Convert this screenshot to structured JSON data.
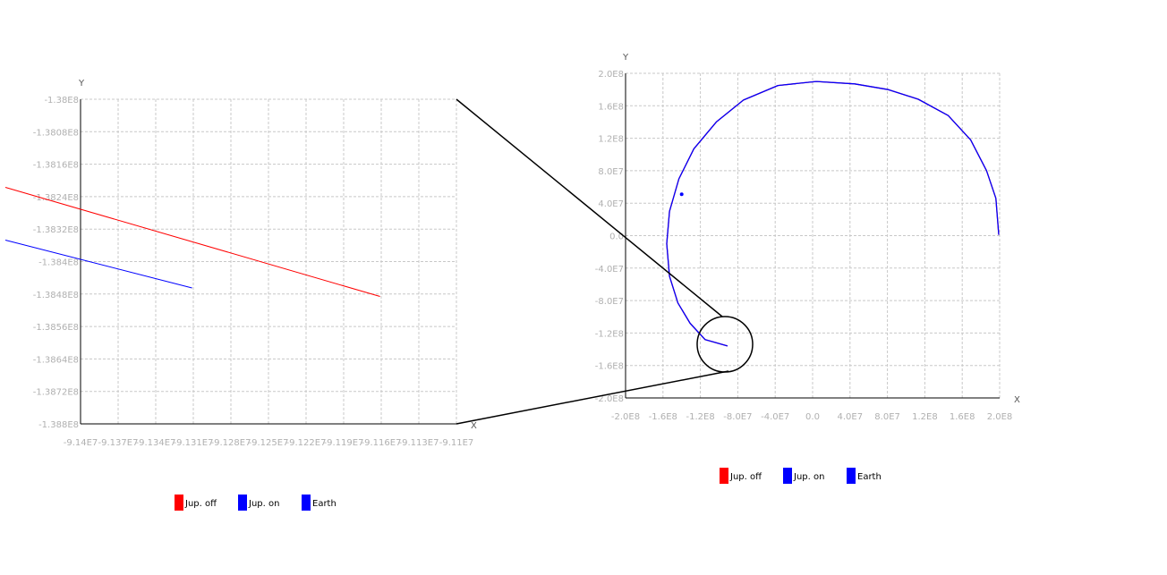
{
  "colors": {
    "jup_off": "#ff0000",
    "jup_on": "#0000ff",
    "earth": "#0000ff",
    "grid": "#c8c8c8",
    "axis": "#000000",
    "tick_text": "#b0b0b0"
  },
  "legend": [
    {
      "label": "Jup. off",
      "color": "#ff0000"
    },
    {
      "label": "Jup. on",
      "color": "#0000ff"
    },
    {
      "label": "Earth",
      "color": "#0000ff"
    }
  ],
  "chart_data": [
    {
      "type": "line",
      "xlabel": "X",
      "ylabel": "Y",
      "xlim": [
        -91400000,
        -91100000
      ],
      "ylim": [
        -138800000,
        -138000000
      ],
      "grid": true,
      "x_ticks": [
        "-9.14E7",
        "-9.137E7",
        "-9.134E7",
        "-9.131E7",
        "-9.128E7",
        "-9.125E7",
        "-9.122E7",
        "-9.119E7",
        "-9.116E7",
        "-9.113E7",
        "-9.11E7"
      ],
      "y_ticks": [
        "-1.38E8",
        "-1.3808E8",
        "-1.3816E8",
        "-1.3824E8",
        "-1.3832E8",
        "-1.384E8",
        "-1.3848E8",
        "-1.3856E8",
        "-1.3864E8",
        "-1.3872E8",
        "-1.388E8"
      ],
      "series": [
        {
          "name": "Jup. off",
          "color": "#ff0000",
          "x": [
            -91460000,
            -91161000
          ],
          "y": [
            -138217000,
            -138486000
          ]
        },
        {
          "name": "Jup. on",
          "color": "#0000ff",
          "x": [
            -91460000,
            -91311000
          ],
          "y": [
            -138347000,
            -138465000
          ]
        }
      ]
    },
    {
      "type": "line",
      "xlabel": "X",
      "ylabel": "Y",
      "xlim": [
        -200000000,
        200000000
      ],
      "ylim": [
        -200000000,
        200000000
      ],
      "grid": true,
      "x_ticks": [
        "-2.0E8",
        "-1.6E8",
        "-1.2E8",
        "-8.0E7",
        "-4.0E7",
        "0.0",
        "4.0E7",
        "8.0E7",
        "1.2E8",
        "1.6E8",
        "2.0E8"
      ],
      "y_ticks": [
        "2.0E8",
        "1.6E8",
        "1.2E8",
        "8.0E7",
        "4.0E7",
        "0.0",
        "-4.0E7",
        "-8.0E7",
        "-1.2E8",
        "-1.6E8",
        "-2.0E8"
      ],
      "series": [
        {
          "name": "Jup. off",
          "color": "#ff0000",
          "x": [
            199000000,
            196000000,
            186000000,
            169000000,
            145000000,
            113000000,
            81000000,
            45000000,
            4000000,
            -37000000,
            -74000000,
            -103000000,
            -127000000,
            -143000000,
            -153000000,
            -156000000,
            -153000000,
            -144000000,
            -131000000,
            -115000000,
            -91000000
          ],
          "y": [
            1000000,
            46000000,
            80000000,
            118000000,
            148000000,
            168000000,
            180000000,
            187000000,
            190000000,
            185000000,
            167000000,
            140000000,
            107000000,
            70000000,
            30000000,
            -10000000,
            -50000000,
            -83000000,
            -108000000,
            -128000000,
            -136000000
          ]
        },
        {
          "name": "Jup. on",
          "color": "#0000ff",
          "x": [
            199000000,
            196000000,
            186000000,
            169000000,
            145000000,
            113000000,
            81000000,
            45000000,
            4000000,
            -37000000,
            -74000000,
            -103000000,
            -127000000,
            -143000000,
            -153000000,
            -156000000,
            -153000000,
            -144000000,
            -131000000,
            -115000000,
            -91000000
          ],
          "y": [
            1000000,
            46000000,
            80000000,
            118000000,
            148000000,
            168000000,
            180000000,
            187000000,
            190000000,
            185000000,
            167000000,
            140000000,
            107000000,
            70000000,
            30000000,
            -10000000,
            -50000000,
            -83000000,
            -108000000,
            -128000000,
            -136000000
          ]
        },
        {
          "name": "Earth",
          "color": "#0000ff",
          "marker": "point",
          "x": [
            -140000000
          ],
          "y": [
            51000000
          ]
        }
      ],
      "annotations": [
        {
          "type": "zoom-circle",
          "center_data": [
            -92000000,
            -135000000
          ]
        }
      ]
    }
  ]
}
